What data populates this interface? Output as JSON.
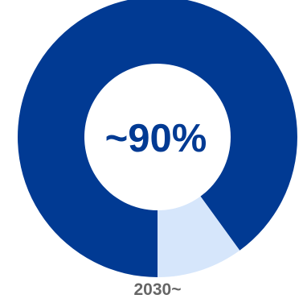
{
  "colors": {
    "primary": "#013a93",
    "remainder": "#d6e6fb",
    "background": "#ffffff",
    "label": "#666666"
  },
  "chart_data": [
    {
      "type": "pie",
      "variant": "donut",
      "partially_visible": true,
      "center_label": "",
      "x_label": ""
    },
    {
      "type": "pie",
      "variant": "donut",
      "center_label": "~90%",
      "x_label": "2030~",
      "slices": [
        {
          "name": "",
          "value": 90,
          "color": "#013a93"
        },
        {
          "name": "",
          "value": 10,
          "color": "#d6e6fb"
        }
      ]
    }
  ]
}
